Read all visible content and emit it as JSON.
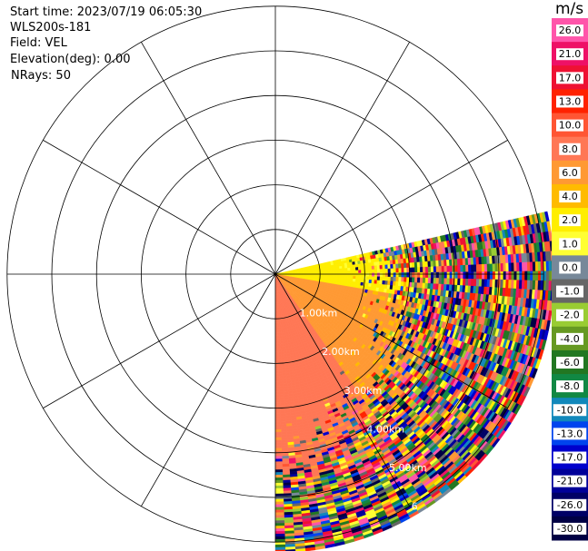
{
  "header": {
    "start_time": "Start time: 2023/07/19 06:05:30",
    "instrument": "WLS200s-181",
    "field": "Field: VEL",
    "elevation": "Elevation(deg): 0.00",
    "nrays": "NRays: 50"
  },
  "colorbar": {
    "title": "m/s",
    "labels": [
      "26.0",
      "21.0",
      "17.0",
      "13.0",
      "10.0",
      "8.0",
      "6.0",
      "4.0",
      "2.0",
      "1.0",
      "0.0",
      "-1.0",
      "-2.0",
      "-4.0",
      "-6.0",
      "-8.0",
      "-10.0",
      "-13.0",
      "-17.0",
      "-21.0",
      "-26.0",
      "-30.0"
    ],
    "colors": [
      "#ff55aa",
      "#ee1166",
      "#ee1133",
      "#ff2200",
      "#ff5533",
      "#ff7755",
      "#ff9933",
      "#ffbb00",
      "#ffee00",
      "#ffff33",
      "#778899",
      "#666666",
      "#99cc33",
      "#669922",
      "#227722",
      "#118844",
      "#1188bb",
      "#0044ee",
      "#0000cc",
      "#000099",
      "#000066",
      "#000044"
    ]
  },
  "chart_data": {
    "type": "ppi",
    "field": "VEL",
    "units": "m/s",
    "rings_km": [
      1,
      2,
      3,
      4,
      5,
      6
    ],
    "range_labels": [
      "1.00km",
      "2.00km",
      "3.00km",
      "4.00km",
      "5.00km",
      "6"
    ],
    "spoke_interval_deg": 30,
    "sector_azimuth_deg": [
      77,
      180
    ],
    "nrays": 50,
    "sector_near_range": [
      {
        "azimuth_start_deg": 77,
        "azimuth_end_deg": 100,
        "velocity_ms": 2.5
      },
      {
        "azimuth_start_deg": 100,
        "azimuth_end_deg": 145,
        "velocity_ms": 6.5
      },
      {
        "azimuth_start_deg": 145,
        "azimuth_end_deg": 180,
        "velocity_ms": 8.5
      }
    ]
  }
}
